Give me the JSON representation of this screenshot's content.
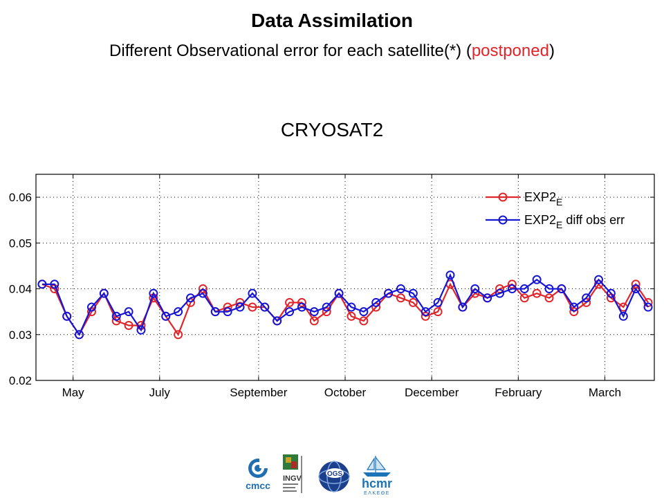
{
  "header": {
    "title": "Data Assimilation",
    "subtitle_prefix": "Different Observational error for each satellite(*) (",
    "subtitle_highlight": "postponed",
    "subtitle_suffix": ")"
  },
  "chart_title": "CRYOSAT2",
  "colors": {
    "series1": "#e0252a",
    "series2": "#1515d6",
    "highlight": "#e0252a"
  },
  "chart_data": {
    "type": "line",
    "title": "CRYOSAT2",
    "xlabel": "",
    "ylabel": "",
    "ylim": [
      0.02,
      0.065
    ],
    "yticks": [
      "0.02",
      "0.03",
      "0.04",
      "0.05",
      "0.06"
    ],
    "xtick_labels": [
      "May",
      "July",
      "September",
      "October",
      "December",
      "February",
      "March"
    ],
    "xtick_index": [
      2.5,
      9.5,
      17.5,
      24.5,
      31.5,
      38.5,
      45.5
    ],
    "grid": true,
    "legend_position": "top-right",
    "series": [
      {
        "name": "EXP2",
        "name_sub": "E",
        "name_suffix": "",
        "color": "#e0252a",
        "values": [
          0.041,
          0.04,
          0.034,
          0.03,
          0.035,
          0.039,
          0.033,
          0.032,
          0.032,
          0.038,
          0.034,
          0.03,
          0.037,
          0.04,
          0.035,
          0.036,
          0.037,
          0.036,
          0.036,
          0.033,
          0.037,
          0.037,
          0.033,
          0.035,
          0.039,
          0.034,
          0.033,
          0.036,
          0.039,
          0.038,
          0.037,
          0.034,
          0.035,
          0.041,
          0.036,
          0.039,
          0.038,
          0.04,
          0.041,
          0.038,
          0.039,
          0.038,
          0.04,
          0.035,
          0.037,
          0.041,
          0.038,
          0.036,
          0.041,
          0.037
        ]
      },
      {
        "name": "EXP2",
        "name_sub": "E",
        "name_suffix": " diff obs err",
        "color": "#1515d6",
        "values": [
          0.041,
          0.041,
          0.034,
          0.03,
          0.036,
          0.039,
          0.034,
          0.035,
          0.031,
          0.039,
          0.034,
          0.035,
          0.038,
          0.039,
          0.035,
          0.035,
          0.036,
          0.039,
          0.036,
          0.033,
          0.035,
          0.036,
          0.035,
          0.036,
          0.039,
          0.036,
          0.035,
          0.037,
          0.039,
          0.04,
          0.039,
          0.035,
          0.037,
          0.043,
          0.036,
          0.04,
          0.038,
          0.039,
          0.04,
          0.04,
          0.042,
          0.04,
          0.04,
          0.036,
          0.038,
          0.042,
          0.039,
          0.034,
          0.04,
          0.036
        ]
      }
    ]
  },
  "logos": {
    "cmcc": "cmcc",
    "ingv": "INGV",
    "ogs": "OGS",
    "hcmr": "hcmr",
    "hcmr_sub": "ΕΛΚΕΘΕ"
  }
}
